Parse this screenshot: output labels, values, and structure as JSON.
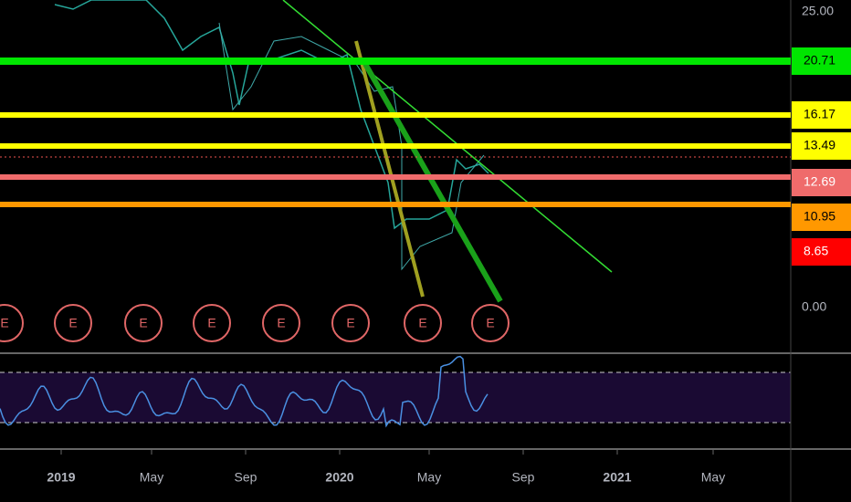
{
  "price_axis": {
    "ticks": [
      "25.00",
      "0.00"
    ]
  },
  "levels": [
    {
      "label": "20.71",
      "color": "#00e600",
      "text_color": "#000000"
    },
    {
      "label": "16.17",
      "color": "#ffff00",
      "text_color": "#000000"
    },
    {
      "label": "13.49",
      "color": "#ffff00",
      "text_color": "#000000"
    },
    {
      "label": "12.69",
      "color": "#ef6b6b",
      "text_color": "#ffffff"
    },
    {
      "label": "10.95",
      "color": "#ff9800",
      "text_color": "#000000"
    },
    {
      "label": "8.65",
      "color": "#ff0000",
      "text_color": "#ffffff"
    }
  ],
  "time_axis": {
    "labels": [
      "2019",
      "May",
      "Sep",
      "2020",
      "May",
      "Sep",
      "2021",
      "May"
    ]
  },
  "events": [
    "E",
    "E",
    "E",
    "E",
    "E",
    "E",
    "E",
    "E"
  ]
}
